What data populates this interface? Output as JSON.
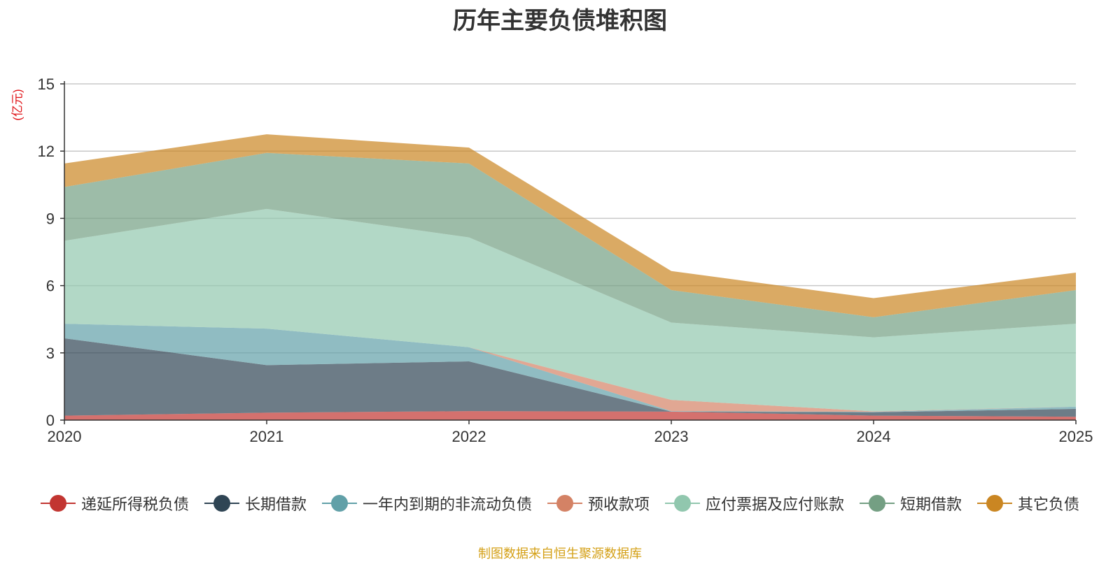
{
  "title": "历年主要负债堆积图",
  "source_note": "制图数据来自恒生聚源数据库",
  "chart_data": {
    "type": "area",
    "stacked": true,
    "title": "历年主要负债堆积图",
    "ylabel": "(亿元)",
    "xlabel": "",
    "ylim": [
      0,
      15
    ],
    "yticks": [
      0,
      3,
      6,
      9,
      12,
      15
    ],
    "x": [
      "2020",
      "2021",
      "2022",
      "2023",
      "2024",
      "2025"
    ],
    "grid": true,
    "legend_position": "bottom",
    "series": [
      {
        "name": "递延所得税负债",
        "color": "#c23531",
        "values": [
          0.2,
          0.33,
          0.4,
          0.38,
          0.2,
          0.15
        ]
      },
      {
        "name": "长期借款",
        "color": "#2f4554",
        "values": [
          3.45,
          2.12,
          2.22,
          0.0,
          0.15,
          0.35
        ]
      },
      {
        "name": "一年内到期的非流动负债",
        "color": "#61a0a8",
        "values": [
          0.65,
          1.63,
          0.63,
          0.02,
          0.02,
          0.1
        ]
      },
      {
        "name": "预收款项",
        "color": "#d48265",
        "values": [
          0.0,
          0.0,
          0.0,
          0.5,
          0.02,
          0.0
        ]
      },
      {
        "name": "应付票据及应付账款",
        "color": "#91c7ae",
        "values": [
          3.7,
          5.34,
          4.9,
          3.45,
          3.3,
          3.7
        ]
      },
      {
        "name": "短期借款",
        "color": "#749f83",
        "values": [
          2.4,
          2.5,
          3.3,
          1.45,
          0.9,
          1.5
        ]
      },
      {
        "name": "其它负债",
        "color": "#ca8622",
        "values": [
          1.05,
          0.83,
          0.71,
          0.85,
          0.85,
          0.78
        ]
      }
    ]
  }
}
